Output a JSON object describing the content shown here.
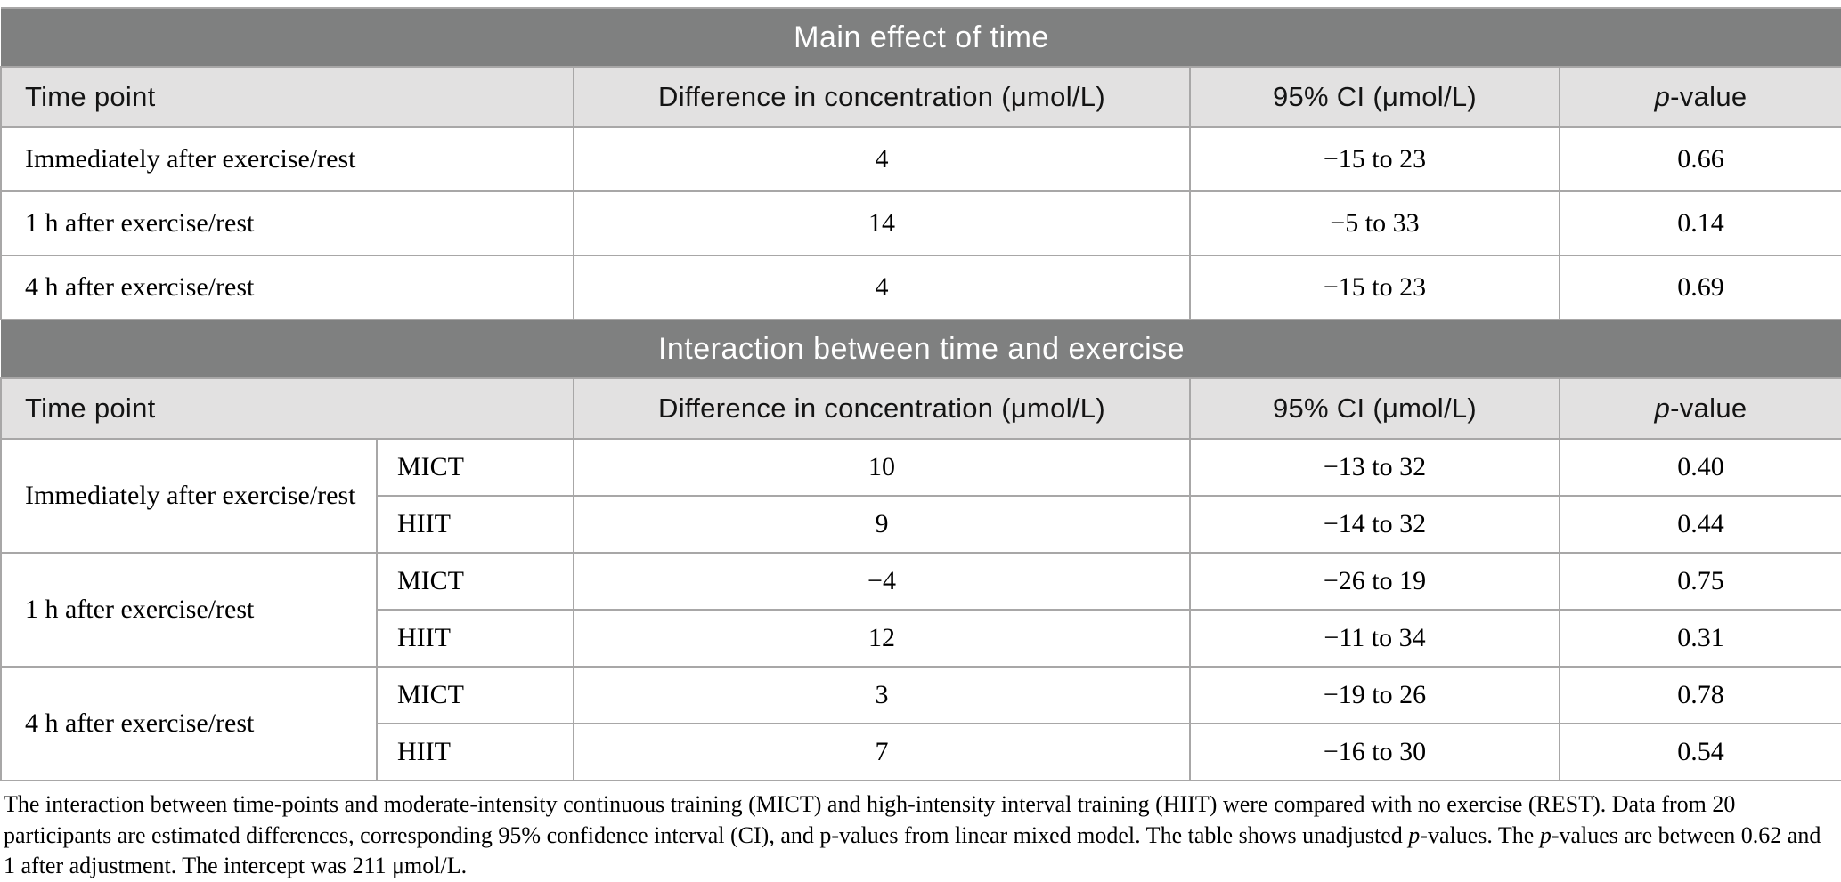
{
  "colors": {
    "section_bar_bg": "#7f8080",
    "section_bar_text": "#ffffff",
    "header_row_bg": "#e2e1e1",
    "border": "#a8a7a7",
    "text": "#000000",
    "background": "#ffffff"
  },
  "s1": {
    "title": "Main effect of time",
    "headers": {
      "time_point": "Time point",
      "difference": "Difference in concentration (μmol/L)",
      "ci": "95% CI (μmol/L)",
      "p_italic": "p",
      "p_rest": "-value"
    },
    "rows": [
      {
        "time_point": "Immediately after exercise/rest",
        "difference": "4",
        "ci": "−15 to 23",
        "p": "0.66"
      },
      {
        "time_point": "1 h after exercise/rest",
        "difference": "14",
        "ci": "−5 to 33",
        "p": "0.14"
      },
      {
        "time_point": "4 h after exercise/rest",
        "difference": "4",
        "ci": "−15 to 23",
        "p": "0.69"
      }
    ]
  },
  "s2": {
    "title": "Interaction between time and exercise",
    "headers": {
      "time_point": "Time point",
      "difference": "Difference in concentration (μmol/L)",
      "ci": "95% CI (μmol/L)",
      "p_italic": "p",
      "p_rest": "-value"
    },
    "groups": [
      {
        "time_point": "Immediately after exercise/rest",
        "rows": [
          {
            "condition": "MICT",
            "difference": "10",
            "ci": "−13 to 32",
            "p": "0.40"
          },
          {
            "condition": "HIIT",
            "difference": "9",
            "ci": "−14 to 32",
            "p": "0.44"
          }
        ]
      },
      {
        "time_point": "1 h after exercise/rest",
        "rows": [
          {
            "condition": "MICT",
            "difference": "−4",
            "ci": "−26 to 19",
            "p": "0.75"
          },
          {
            "condition": "HIIT",
            "difference": "12",
            "ci": "−11 to 34",
            "p": "0.31"
          }
        ]
      },
      {
        "time_point": "4 h after exercise/rest",
        "rows": [
          {
            "condition": "MICT",
            "difference": "3",
            "ci": "−19 to 26",
            "p": "0.78"
          },
          {
            "condition": "HIIT",
            "difference": "7",
            "ci": "−16 to 30",
            "p": "0.54"
          }
        ]
      }
    ]
  },
  "footnote": {
    "segments": [
      {
        "text": "The interaction between time-points and moderate-intensity continuous training (MICT) and high-intensity interval training (HIIT) were compared with no exercise (REST). Data from 20 participants are estimated differences, corresponding 95% confidence interval (CI), and p-values from linear mixed model. The table shows unadjusted ",
        "italic": false
      },
      {
        "text": "p",
        "italic": true
      },
      {
        "text": "-values. The ",
        "italic": false
      },
      {
        "text": "p",
        "italic": true
      },
      {
        "text": "-values are between 0.62 and 1 after adjustment. The intercept was 211 μmol/L.",
        "italic": false
      }
    ]
  }
}
